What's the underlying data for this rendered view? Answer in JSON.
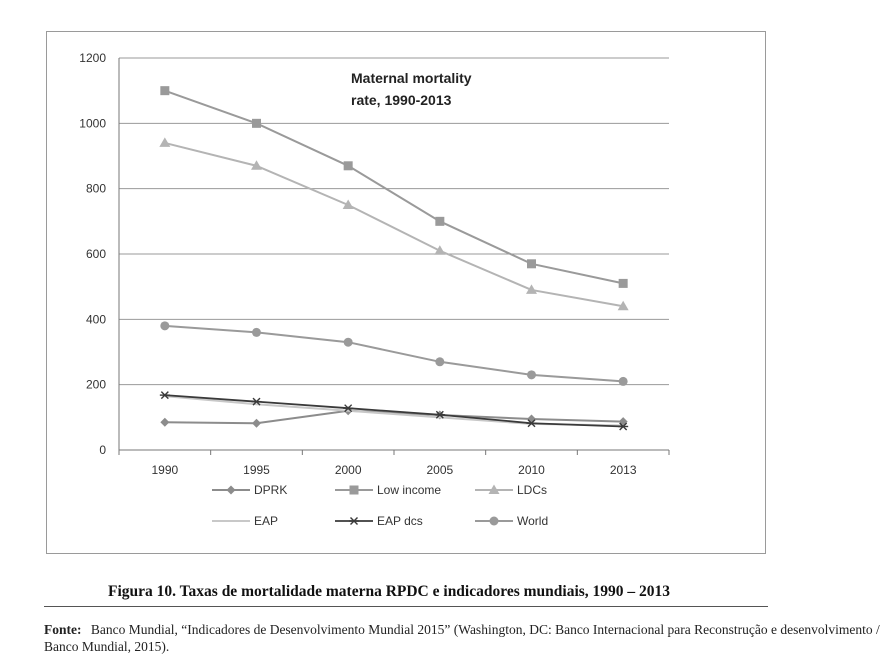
{
  "chart_data": {
    "type": "line",
    "title": "Maternal mortality rate, 1990-2013",
    "title_lines": [
      "Maternal mortality",
      "rate, 1990-2013"
    ],
    "xlabel": "",
    "ylabel": "",
    "categories": [
      "1990",
      "1995",
      "2000",
      "2005",
      "2010",
      "2013"
    ],
    "ylim": [
      0,
      1200
    ],
    "yticks": [
      0,
      200,
      400,
      600,
      800,
      1000,
      1200
    ],
    "grid": "horizontal",
    "legend_position": "bottom",
    "series": [
      {
        "name": "DPRK",
        "marker": "diamond",
        "color": "#8c8c8c",
        "values": [
          85,
          82,
          120,
          107,
          95,
          87
        ]
      },
      {
        "name": "Low income",
        "marker": "square",
        "color": "#9a9a9a",
        "values": [
          1100,
          1000,
          870,
          700,
          570,
          510
        ]
      },
      {
        "name": "LDCs",
        "marker": "triangle",
        "color": "#b4b4b4",
        "values": [
          940,
          870,
          750,
          610,
          490,
          440
        ]
      },
      {
        "name": "EAP",
        "marker": "none",
        "color": "#c8c8c8",
        "values": [
          165,
          140,
          120,
          100,
          80,
          75
        ]
      },
      {
        "name": "EAP dcs",
        "marker": "star",
        "color": "#3a3a3a",
        "values": [
          168,
          148,
          128,
          108,
          82,
          72
        ]
      },
      {
        "name": "World",
        "marker": "circle",
        "color": "#9a9a9a",
        "values": [
          380,
          360,
          330,
          270,
          230,
          210
        ]
      }
    ]
  },
  "caption": "Figura 10. Taxas de mortalidade materna RPDC e indicadores mundiais, 1990 – 2013",
  "source": {
    "label": "Fonte:",
    "text": "Banco Mundial, “Indicadores de Desenvolvimento Mundial 2015” (Washington, DC: Banco Internacional para Reconstrução e desenvolvimento / Banco Mundial, 2015)."
  }
}
